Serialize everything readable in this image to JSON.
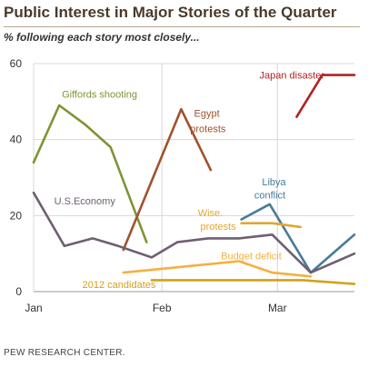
{
  "title": "Public Interest in Major Stories of the Quarter",
  "subtitle": "% following each story most closely...",
  "source": "PEW RESEARCH CENTER.",
  "chart_data": {
    "type": "line",
    "x_ticks": [
      "Jan",
      "Feb",
      "Mar"
    ],
    "y_ticks": [
      0,
      20,
      40,
      60
    ],
    "ylim": [
      0,
      60
    ],
    "xlim": [
      0,
      12.5
    ],
    "grid": true,
    "legend": "direct labels on lines",
    "series": [
      {
        "name": "Giffords shooting",
        "color": "#7d9535",
        "x": [
          0,
          1,
          2,
          3,
          4.4
        ],
        "y": [
          34,
          49,
          44,
          38,
          13
        ]
      },
      {
        "name": "Egypt protests",
        "color": "#a0522d",
        "x": [
          3.5,
          5.75,
          6.9
        ],
        "y": [
          11,
          48,
          32
        ]
      },
      {
        "name": "Japan disaster",
        "color": "#b22222",
        "x": [
          10.25,
          11.25,
          12.5
        ],
        "y": [
          46,
          57,
          57
        ]
      },
      {
        "name": "Libya conflict",
        "color": "#4a7a99",
        "x": [
          8.1,
          9.2,
          10.8,
          12.5
        ],
        "y": [
          19,
          23,
          5,
          15
        ]
      },
      {
        "name": "U.S.Economy",
        "color": "#6f5f71",
        "x": [
          0,
          1.2,
          2.3,
          3.3,
          4.6,
          5.6,
          6.8,
          8.0,
          9.3,
          10.8,
          12.5
        ],
        "y": [
          26,
          12,
          14,
          12,
          9,
          13,
          14,
          14,
          15,
          5,
          10
        ]
      },
      {
        "name": "Wise. protests",
        "color": "#e0a830",
        "x": [
          8.1,
          9.3,
          10.4
        ],
        "y": [
          18,
          18,
          17
        ]
      },
      {
        "name": "Budget deficit",
        "color": "#f5b041",
        "x": [
          3.5,
          5.0,
          6.5,
          8.0,
          9.3,
          10.8
        ],
        "y": [
          5,
          6,
          7,
          8,
          5,
          4
        ]
      },
      {
        "name": "2012 candidates",
        "color": "#d4a017",
        "x": [
          4.6,
          6.0,
          7.5,
          9.0,
          10.5,
          12.5
        ],
        "y": [
          3,
          3,
          3,
          3,
          3,
          2
        ]
      }
    ],
    "labels": [
      {
        "text": "Giffords shooting",
        "series": "Giffords shooting",
        "at": [
          1.1,
          51
        ]
      },
      {
        "text": "Egypt",
        "series": "Egypt protests",
        "at": [
          6.25,
          46
        ]
      },
      {
        "text": "protests",
        "series": "Egypt protests",
        "at": [
          6.1,
          42
        ]
      },
      {
        "text": "Japan disaster",
        "series": "Japan disaster",
        "at": [
          8.8,
          56
        ]
      },
      {
        "text": "Libya",
        "series": "Libya conflict",
        "at": [
          8.9,
          28
        ]
      },
      {
        "text": "conflict",
        "series": "Libya conflict",
        "at": [
          8.6,
          24.5
        ]
      },
      {
        "text": "U.S.Economy",
        "series": "U.S.Economy",
        "at": [
          0.8,
          23
        ]
      },
      {
        "text": "Wise.",
        "series": "Wise. protests",
        "at": [
          6.4,
          19.8
        ]
      },
      {
        "text": "protests",
        "series": "Wise. protests",
        "at": [
          6.5,
          16.3
        ]
      },
      {
        "text": "Budget deficit",
        "series": "Budget deficit",
        "at": [
          7.3,
          8.5
        ]
      },
      {
        "text": "2012 candidates",
        "series": "2012 candidates",
        "at": [
          1.9,
          1
        ]
      }
    ]
  }
}
